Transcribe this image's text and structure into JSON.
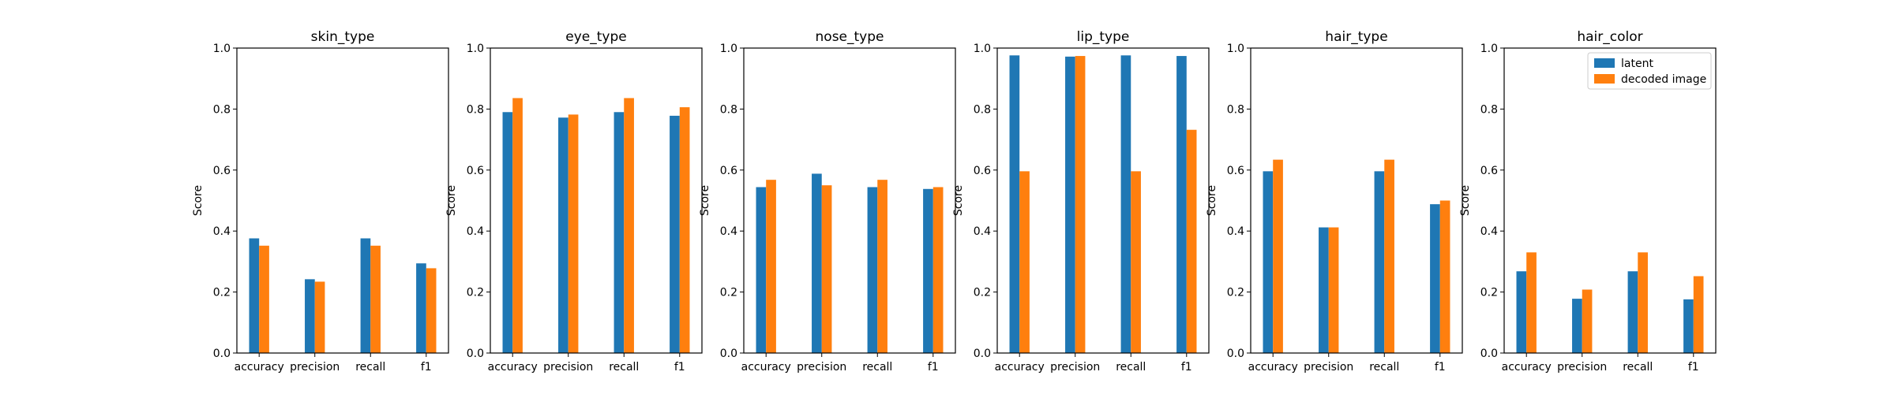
{
  "colors": {
    "latent": "#1f77b4",
    "decoded": "#ff7f0e",
    "axis": "#000000"
  },
  "chart_data": [
    {
      "type": "bar",
      "title": "skin_type",
      "xlabel": "",
      "ylabel": "Score",
      "ylim": [
        0,
        1
      ],
      "yticks": [
        "0.0",
        "0.2",
        "0.4",
        "0.6",
        "0.8",
        "1.0"
      ],
      "categories": [
        "accuracy",
        "precision",
        "recall",
        "f1"
      ],
      "series": [
        {
          "name": "latent",
          "values": [
            0.376,
            0.242,
            0.376,
            0.294
          ]
        },
        {
          "name": "decoded image",
          "values": [
            0.352,
            0.234,
            0.352,
            0.278
          ]
        }
      ],
      "legend": false
    },
    {
      "type": "bar",
      "title": "eye_type",
      "xlabel": "",
      "ylabel": "Score",
      "ylim": [
        0,
        1
      ],
      "yticks": [
        "0.0",
        "0.2",
        "0.4",
        "0.6",
        "0.8",
        "1.0"
      ],
      "categories": [
        "accuracy",
        "precision",
        "recall",
        "f1"
      ],
      "series": [
        {
          "name": "latent",
          "values": [
            0.79,
            0.772,
            0.79,
            0.778
          ]
        },
        {
          "name": "decoded image",
          "values": [
            0.836,
            0.782,
            0.836,
            0.806
          ]
        }
      ],
      "legend": false
    },
    {
      "type": "bar",
      "title": "nose_type",
      "xlabel": "",
      "ylabel": "Score",
      "ylim": [
        0,
        1
      ],
      "yticks": [
        "0.0",
        "0.2",
        "0.4",
        "0.6",
        "0.8",
        "1.0"
      ],
      "categories": [
        "accuracy",
        "precision",
        "recall",
        "f1"
      ],
      "series": [
        {
          "name": "latent",
          "values": [
            0.544,
            0.588,
            0.544,
            0.538
          ]
        },
        {
          "name": "decoded image",
          "values": [
            0.568,
            0.55,
            0.568,
            0.544
          ]
        }
      ],
      "legend": false
    },
    {
      "type": "bar",
      "title": "lip_type",
      "xlabel": "",
      "ylabel": "Score",
      "ylim": [
        0,
        1
      ],
      "yticks": [
        "0.0",
        "0.2",
        "0.4",
        "0.6",
        "0.8",
        "1.0"
      ],
      "categories": [
        "accuracy",
        "precision",
        "recall",
        "f1"
      ],
      "series": [
        {
          "name": "latent",
          "values": [
            0.976,
            0.972,
            0.976,
            0.974
          ]
        },
        {
          "name": "decoded image",
          "values": [
            0.596,
            0.974,
            0.596,
            0.732
          ]
        }
      ],
      "legend": false
    },
    {
      "type": "bar",
      "title": "hair_type",
      "xlabel": "",
      "ylabel": "Score",
      "ylim": [
        0,
        1
      ],
      "yticks": [
        "0.0",
        "0.2",
        "0.4",
        "0.6",
        "0.8",
        "1.0"
      ],
      "categories": [
        "accuracy",
        "precision",
        "recall",
        "f1"
      ],
      "series": [
        {
          "name": "latent",
          "values": [
            0.596,
            0.412,
            0.596,
            0.488
          ]
        },
        {
          "name": "decoded image",
          "values": [
            0.634,
            0.412,
            0.634,
            0.5
          ]
        }
      ],
      "legend": false
    },
    {
      "type": "bar",
      "title": "hair_color",
      "xlabel": "",
      "ylabel": "Score",
      "ylim": [
        0,
        1
      ],
      "yticks": [
        "0.0",
        "0.2",
        "0.4",
        "0.6",
        "0.8",
        "1.0"
      ],
      "categories": [
        "accuracy",
        "precision",
        "recall",
        "f1"
      ],
      "series": [
        {
          "name": "latent",
          "values": [
            0.268,
            0.178,
            0.268,
            0.176
          ]
        },
        {
          "name": "decoded image",
          "values": [
            0.33,
            0.208,
            0.33,
            0.252
          ]
        }
      ],
      "legend": true,
      "legend_position": "top-right"
    }
  ]
}
